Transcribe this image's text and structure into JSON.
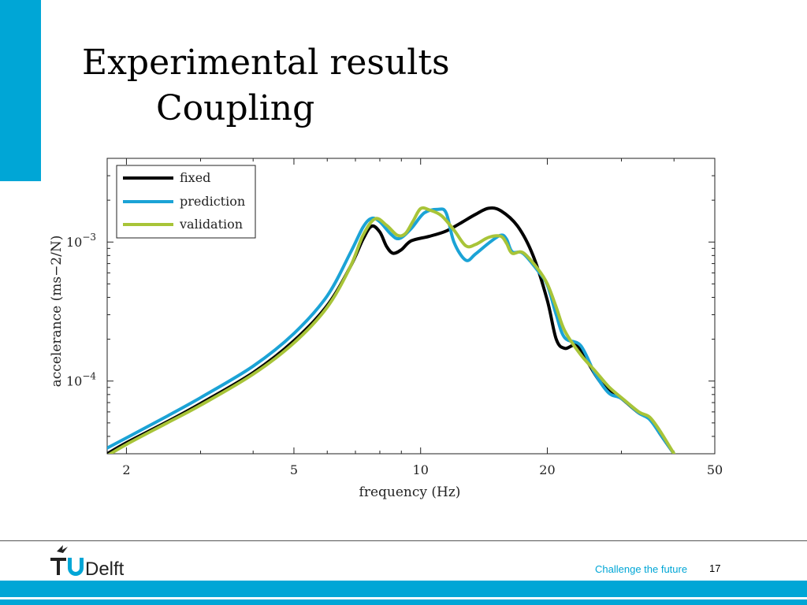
{
  "slide": {
    "title": "Experimental results",
    "subtitle": "Coupling",
    "tagline": "Challenge the future",
    "page_number": "17",
    "logo_text": "Delft",
    "accent_color": "#00a6d6"
  },
  "chart_data": {
    "type": "line",
    "title": "",
    "xlabel": "frequency (Hz)",
    "ylabel": "accelerance (ms−2/N)",
    "xscale": "log",
    "yscale": "log",
    "xlim": [
      1.8,
      50
    ],
    "ylim": [
      3e-05,
      0.004
    ],
    "xticks": [
      {
        "value": 2,
        "label": "2"
      },
      {
        "value": 5,
        "label": "5"
      },
      {
        "value": 10,
        "label": "10"
      },
      {
        "value": 20,
        "label": "20"
      },
      {
        "value": 50,
        "label": "50"
      }
    ],
    "yticks": [
      {
        "value": 0.0001,
        "base": "10",
        "exp": "−4"
      },
      {
        "value": 0.001,
        "base": "10",
        "exp": "−3"
      }
    ],
    "grid": false,
    "legend": "top-left",
    "series": [
      {
        "name": "fixed",
        "color": "#000000",
        "points": [
          [
            1.8,
            3e-05
          ],
          [
            2,
            3.6e-05
          ],
          [
            2.5,
            5.1e-05
          ],
          [
            3,
            6.9e-05
          ],
          [
            4,
            0.000115
          ],
          [
            5,
            0.000195
          ],
          [
            6,
            0.00035
          ],
          [
            6.8,
            0.00066
          ],
          [
            7.3,
            0.00105
          ],
          [
            7.65,
            0.0013
          ],
          [
            8.0,
            0.00118
          ],
          [
            8.3,
            0.00093
          ],
          [
            8.6,
            0.00083
          ],
          [
            9.0,
            0.00088
          ],
          [
            9.5,
            0.00102
          ],
          [
            10.5,
            0.0011
          ],
          [
            11.5,
            0.0012
          ],
          [
            12.5,
            0.00138
          ],
          [
            13.5,
            0.00158
          ],
          [
            14.5,
            0.00175
          ],
          [
            15.5,
            0.00168
          ],
          [
            17,
            0.0013
          ],
          [
            18.5,
            0.0008
          ],
          [
            20,
            0.00038
          ],
          [
            21,
            0.0002
          ],
          [
            22,
            0.000172
          ],
          [
            23.5,
            0.00018
          ],
          [
            25,
            0.000135
          ],
          [
            27,
            9.5e-05
          ],
          [
            30,
            7.5e-05
          ],
          [
            33,
            5.9e-05
          ],
          [
            35,
            5.4e-05
          ],
          [
            37,
            4.2e-05
          ],
          [
            40,
            3e-05
          ]
        ]
      },
      {
        "name": "prediction",
        "color": "#1ba3d6",
        "points": [
          [
            1.8,
            3.3e-05
          ],
          [
            2,
            3.9e-05
          ],
          [
            2.5,
            5.6e-05
          ],
          [
            3,
            7.6e-05
          ],
          [
            4,
            0.000128
          ],
          [
            5,
            0.00022
          ],
          [
            6,
            0.00041
          ],
          [
            6.8,
            0.00083
          ],
          [
            7.3,
            0.00128
          ],
          [
            7.65,
            0.00148
          ],
          [
            8.0,
            0.0014
          ],
          [
            8.5,
            0.00114
          ],
          [
            8.9,
            0.00106
          ],
          [
            9.5,
            0.00125
          ],
          [
            10.2,
            0.00162
          ],
          [
            11.0,
            0.00172
          ],
          [
            11.5,
            0.00162
          ],
          [
            12.0,
            0.001
          ],
          [
            12.8,
            0.00074
          ],
          [
            13.5,
            0.00082
          ],
          [
            14.5,
            0.00098
          ],
          [
            15.5,
            0.00112
          ],
          [
            16,
            0.00105
          ],
          [
            16.5,
            0.00085
          ],
          [
            17.5,
            0.00083
          ],
          [
            19,
            0.00062
          ],
          [
            20,
            0.00049
          ],
          [
            21,
            0.0003
          ],
          [
            22,
            0.000205
          ],
          [
            24,
            0.00018
          ],
          [
            26,
            0.000112
          ],
          [
            28,
            8.2e-05
          ],
          [
            30,
            7.5e-05
          ],
          [
            33,
            5.9e-05
          ],
          [
            35,
            5.3e-05
          ],
          [
            37,
            4.2e-05
          ],
          [
            40,
            3e-05
          ]
        ]
      },
      {
        "name": "validation",
        "color": "#a8c438",
        "points": [
          [
            1.8,
            2.9e-05
          ],
          [
            2,
            3.5e-05
          ],
          [
            2.5,
            5e-05
          ],
          [
            3,
            6.7e-05
          ],
          [
            4,
            0.000112
          ],
          [
            5,
            0.000188
          ],
          [
            6,
            0.00034
          ],
          [
            6.8,
            0.00066
          ],
          [
            7.3,
            0.00112
          ],
          [
            7.8,
            0.00147
          ],
          [
            8.3,
            0.00132
          ],
          [
            8.8,
            0.00112
          ],
          [
            9.2,
            0.00115
          ],
          [
            9.6,
            0.00142
          ],
          [
            10.0,
            0.00174
          ],
          [
            10.5,
            0.0017
          ],
          [
            11.2,
            0.00155
          ],
          [
            12.0,
            0.00122
          ],
          [
            12.8,
            0.00094
          ],
          [
            13.5,
            0.00096
          ],
          [
            14.5,
            0.00108
          ],
          [
            15.5,
            0.0011
          ],
          [
            16,
            0.00098
          ],
          [
            16.5,
            0.00083
          ],
          [
            17.5,
            0.00084
          ],
          [
            19,
            0.00064
          ],
          [
            20,
            0.0005
          ],
          [
            21,
            0.00034
          ],
          [
            22,
            0.00023
          ],
          [
            24,
            0.000155
          ],
          [
            26,
            0.000118
          ],
          [
            28,
            9.1e-05
          ],
          [
            30,
            7.6e-05
          ],
          [
            33,
            6e-05
          ],
          [
            35,
            5.5e-05
          ],
          [
            37,
            4.4e-05
          ],
          [
            40,
            3e-05
          ]
        ]
      }
    ]
  }
}
